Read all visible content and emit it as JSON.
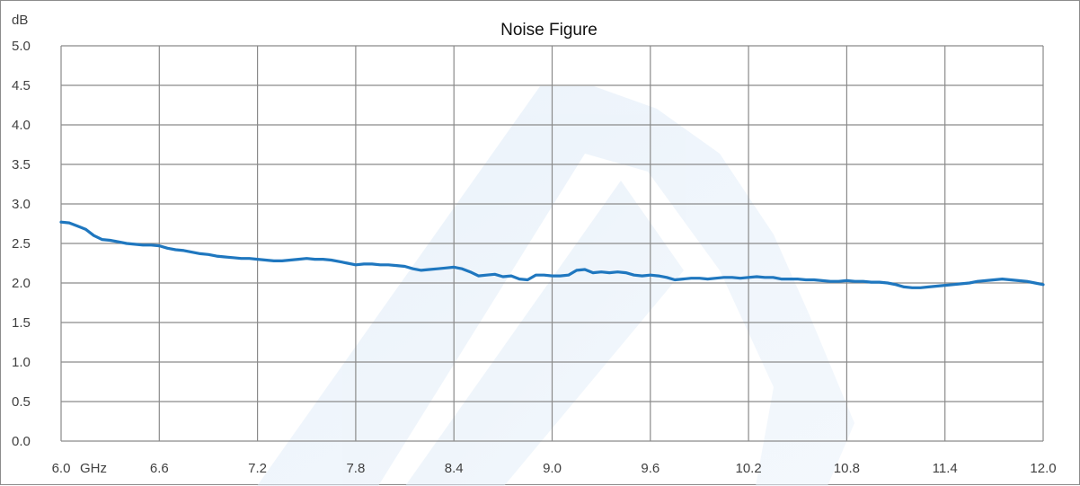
{
  "chart_data": {
    "type": "line",
    "title": "Noise Figure",
    "ylabel": "dB",
    "xunit": "GHz",
    "xlim": [
      6.0,
      12.0
    ],
    "ylim": [
      0.0,
      5.0
    ],
    "grid": true,
    "x_ticks": [
      "6.0",
      "6.6",
      "7.2",
      "7.8",
      "8.4",
      "9.0",
      "9.6",
      "10.2",
      "10.8",
      "11.4",
      "12.0"
    ],
    "y_ticks": [
      "0.0",
      "0.5",
      "1.0",
      "1.5",
      "2.0",
      "2.5",
      "3.0",
      "3.5",
      "4.0",
      "4.5",
      "5.0"
    ],
    "series": [
      {
        "color": "#1f77bf",
        "x": [
          6.0,
          6.05,
          6.1,
          6.15,
          6.2,
          6.25,
          6.3,
          6.35,
          6.4,
          6.45,
          6.5,
          6.55,
          6.6,
          6.65,
          6.7,
          6.75,
          6.8,
          6.85,
          6.9,
          6.95,
          7.0,
          7.05,
          7.1,
          7.15,
          7.2,
          7.25,
          7.3,
          7.35,
          7.4,
          7.45,
          7.5,
          7.55,
          7.6,
          7.65,
          7.7,
          7.75,
          7.8,
          7.85,
          7.9,
          7.95,
          8.0,
          8.05,
          8.1,
          8.15,
          8.2,
          8.25,
          8.3,
          8.35,
          8.4,
          8.45,
          8.5,
          8.55,
          8.6,
          8.65,
          8.7,
          8.75,
          8.8,
          8.85,
          8.9,
          8.95,
          9.0,
          9.05,
          9.1,
          9.15,
          9.2,
          9.25,
          9.3,
          9.35,
          9.4,
          9.45,
          9.5,
          9.55,
          9.6,
          9.65,
          9.7,
          9.75,
          9.8,
          9.85,
          9.9,
          9.95,
          10.0,
          10.05,
          10.1,
          10.15,
          10.2,
          10.25,
          10.3,
          10.35,
          10.4,
          10.45,
          10.5,
          10.55,
          10.6,
          10.65,
          10.7,
          10.75,
          10.8,
          10.85,
          10.9,
          10.95,
          11.0,
          11.05,
          11.1,
          11.15,
          11.2,
          11.25,
          11.3,
          11.35,
          11.4,
          11.45,
          11.5,
          11.55,
          11.6,
          11.65,
          11.7,
          11.75,
          11.8,
          11.85,
          11.9,
          11.95,
          12.0
        ],
        "y": [
          2.77,
          2.76,
          2.72,
          2.68,
          2.6,
          2.55,
          2.54,
          2.52,
          2.5,
          2.49,
          2.48,
          2.48,
          2.47,
          2.44,
          2.42,
          2.41,
          2.39,
          2.37,
          2.36,
          2.34,
          2.33,
          2.32,
          2.31,
          2.31,
          2.3,
          2.29,
          2.28,
          2.28,
          2.29,
          2.3,
          2.31,
          2.3,
          2.3,
          2.29,
          2.27,
          2.25,
          2.23,
          2.24,
          2.24,
          2.23,
          2.23,
          2.22,
          2.21,
          2.18,
          2.16,
          2.17,
          2.18,
          2.19,
          2.2,
          2.18,
          2.14,
          2.09,
          2.1,
          2.11,
          2.08,
          2.09,
          2.05,
          2.04,
          2.1,
          2.1,
          2.09,
          2.09,
          2.1,
          2.16,
          2.17,
          2.13,
          2.14,
          2.13,
          2.14,
          2.13,
          2.1,
          2.09,
          2.1,
          2.09,
          2.07,
          2.04,
          2.05,
          2.06,
          2.06,
          2.05,
          2.06,
          2.07,
          2.07,
          2.06,
          2.07,
          2.08,
          2.07,
          2.07,
          2.05,
          2.05,
          2.05,
          2.04,
          2.04,
          2.03,
          2.02,
          2.02,
          2.03,
          2.02,
          2.02,
          2.01,
          2.01,
          2.0,
          1.98,
          1.95,
          1.94,
          1.94,
          1.95,
          1.96,
          1.97,
          1.98,
          1.99,
          2.0,
          2.02,
          2.03,
          2.04,
          2.05,
          2.04,
          2.03,
          2.02,
          2.0,
          1.98
        ]
      }
    ]
  }
}
